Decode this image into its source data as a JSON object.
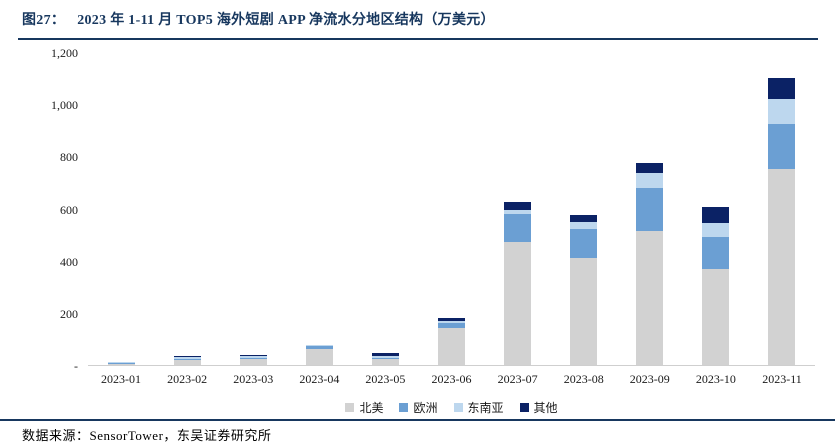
{
  "title": {
    "fig_label": "图27：",
    "text": "2023 年 1-11 月 TOP5 海外短剧 APP 净流水分地区结构（万美元）"
  },
  "footer": {
    "source_text": "数据来源：SensorTower，东吴证券研究所"
  },
  "colors": {
    "accent_navy": "#17375E",
    "axis_line": "#CFCFCF"
  },
  "chart_data": {
    "type": "bar",
    "stacked": true,
    "unit": "万美元",
    "grid": false,
    "legend_position": "bottom",
    "categories": [
      "2023-01",
      "2023-02",
      "2023-03",
      "2023-04",
      "2023-05",
      "2023-06",
      "2023-07",
      "2023-08",
      "2023-09",
      "2023-10",
      "2023-11"
    ],
    "series": [
      {
        "name": "北美",
        "color": "#D2D2D2",
        "values": [
          3,
          18,
          22,
          62,
          22,
          140,
          470,
          410,
          515,
          370,
          750
        ]
      },
      {
        "name": "欧洲",
        "color": "#6B9FD3",
        "values": [
          5,
          6,
          6,
          10,
          5,
          21,
          110,
          110,
          165,
          120,
          175
        ]
      },
      {
        "name": "东南亚",
        "color": "#BDD7EE",
        "values": [
          2,
          7,
          7,
          3,
          6,
          6,
          15,
          30,
          55,
          55,
          95
        ]
      },
      {
        "name": "其他",
        "color": "#0B2265",
        "values": [
          2,
          4,
          3,
          1,
          12,
          15,
          30,
          25,
          40,
          60,
          80
        ]
      }
    ],
    "totals": [
      12,
      35,
      38,
      76,
      45,
      182,
      625,
      575,
      775,
      605,
      1100
    ],
    "ylim": [
      0,
      1200
    ],
    "yticks": [
      {
        "value": 1200,
        "label": "1,200"
      },
      {
        "value": 1000,
        "label": "1,000"
      },
      {
        "value": 800,
        "label": "800"
      },
      {
        "value": 600,
        "label": "600"
      },
      {
        "value": 400,
        "label": "400"
      },
      {
        "value": 200,
        "label": "200"
      },
      {
        "value": 0,
        "label": "-"
      }
    ]
  }
}
